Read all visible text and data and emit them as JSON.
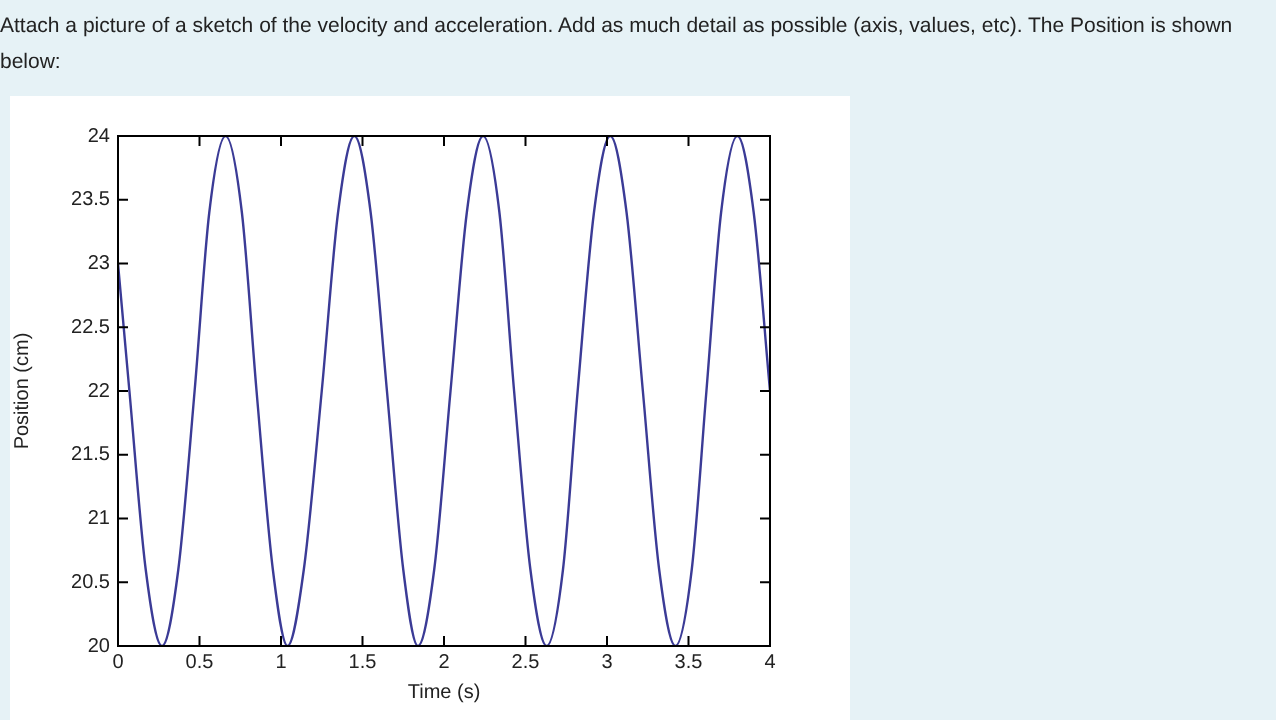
{
  "chart_data": {
    "type": "line",
    "annotations": [
      "Attach a picture of a sketch of the velocity and acceleration.  Add as much detail as possible (axis, values, etc).  The Position is shown below:"
    ],
    "xlabel": "Time (s)",
    "ylabel": "Position (cm)",
    "xlim": [
      0,
      4
    ],
    "xticks": [
      0,
      0.5,
      1,
      1.5,
      2,
      2.5,
      3,
      3.5,
      4
    ],
    "ylim": [
      20,
      24
    ],
    "yticks": [
      20,
      20.5,
      21,
      21.5,
      22,
      22.5,
      23,
      23.5,
      24
    ],
    "grid": false,
    "legend": false,
    "marker": "none",
    "line_style": "solid",
    "series": [
      {
        "color": "#3b3b96",
        "x": [
          0,
          0.07,
          0.17,
          0.27,
          0.37,
          0.47,
          0.56,
          0.66,
          0.76,
          0.85,
          0.95,
          1.04,
          1.14,
          1.25,
          1.35,
          1.45,
          1.55,
          1.65,
          1.75,
          1.84,
          1.94,
          2.04,
          2.14,
          2.24,
          2.34,
          2.43,
          2.53,
          2.63,
          2.73,
          2.82,
          2.92,
          3.02,
          3.12,
          3.22,
          3.32,
          3.42,
          3.52,
          3.61,
          3.7,
          3.8,
          3.9,
          4
        ],
        "values": [
          23,
          22,
          20.6,
          20,
          20.6,
          22,
          23.4,
          24,
          23.4,
          22,
          20.6,
          20,
          20.6,
          22,
          23.4,
          24,
          23.4,
          22,
          20.6,
          20,
          20.6,
          22,
          23.4,
          24,
          23.4,
          22,
          20.6,
          20,
          20.6,
          22,
          23.4,
          24,
          23.4,
          22,
          20.6,
          20,
          20.6,
          22,
          23.4,
          24,
          23.4,
          22
        ]
      }
    ]
  }
}
